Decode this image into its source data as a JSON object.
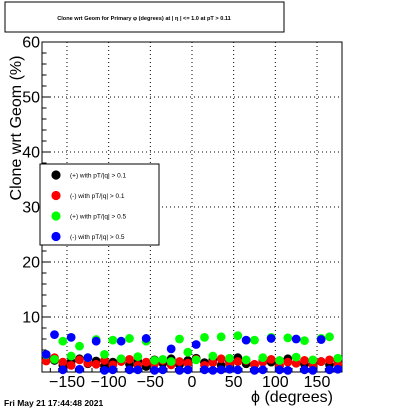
{
  "chart_data": {
    "type": "scatter",
    "title": "Clone wrt Geom for Primary φ (degrees) at | η | <= 1.0 at pT > 0.11",
    "xlabel": "ϕ (degrees)",
    "ylabel": "Clone wrt Geom (%)",
    "xlim": [
      -180,
      180
    ],
    "ylim": [
      0,
      60
    ],
    "x_ticks": [
      -150,
      -100,
      -50,
      0,
      50,
      100,
      150
    ],
    "x_tick_labels": [
      "−150",
      "−100",
      "−50",
      "0",
      "50",
      "100",
      "150"
    ],
    "y_ticks": [
      0,
      10,
      20,
      30,
      40,
      50,
      60
    ],
    "y_tick_labels": [
      "",
      "10",
      "20",
      "30",
      "40",
      "50",
      "60"
    ],
    "grid": true,
    "legend_position": "center-left",
    "series": [
      {
        "name": "(+) with pT/|q| > 0.1",
        "color": "#000000",
        "x": [
          -175,
          -165,
          -155,
          -145,
          -135,
          -125,
          -115,
          -105,
          -95,
          -85,
          -75,
          -65,
          -55,
          -45,
          -35,
          -25,
          -15,
          -5,
          5,
          15,
          25,
          35,
          45,
          55,
          65,
          75,
          85,
          95,
          105,
          115,
          125,
          135,
          145,
          155,
          165,
          175
        ],
        "y": [
          2.8,
          2.1,
          1.2,
          1.9,
          2.4,
          1.5,
          2.0,
          1.1,
          1.8,
          2.3,
          1.4,
          1.9,
          1.0,
          2.2,
          1.6,
          2.4,
          1.3,
          2.1,
          2.5,
          1.7,
          2.2,
          1.2,
          1.9,
          2.6,
          1.5,
          1.3,
          2.0,
          1.8,
          1.1,
          2.4,
          1.6,
          1.4,
          2.1,
          1.9,
          1.3,
          2.2
        ]
      },
      {
        "name": "(-) with pT/|q| > 0.1",
        "color": "#ff0000",
        "x": [
          -175,
          -165,
          -155,
          -145,
          -135,
          -125,
          -115,
          -105,
          -95,
          -85,
          -75,
          -65,
          -55,
          -45,
          -35,
          -25,
          -15,
          -5,
          5,
          15,
          25,
          35,
          45,
          55,
          65,
          75,
          85,
          95,
          105,
          115,
          125,
          135,
          145,
          155,
          165,
          175
        ],
        "y": [
          2.0,
          2.6,
          1.8,
          1.2,
          2.2,
          1.6,
          1.4,
          2.1,
          1.3,
          1.9,
          2.3,
          1.2,
          1.8,
          1.5,
          2.1,
          1.3,
          1.9,
          1.6,
          2.3,
          1.2,
          1.7,
          2.4,
          1.6,
          1.9,
          2.1,
          1.4,
          1.8,
          2.3,
          1.2,
          1.8,
          1.6,
          2.1,
          1.3,
          1.9,
          2.2,
          1.5
        ]
      },
      {
        "name": "(+) with pT/|q| > 0.5",
        "color": "#00ff00",
        "x": [
          -175,
          -165,
          -155,
          -145,
          -135,
          -125,
          -115,
          -105,
          -95,
          -85,
          -75,
          -65,
          -55,
          -45,
          -35,
          -25,
          -15,
          -5,
          5,
          15,
          25,
          35,
          45,
          55,
          65,
          75,
          85,
          95,
          105,
          115,
          125,
          135,
          145,
          155,
          165,
          175
        ],
        "y": [
          3.1,
          2.3,
          5.6,
          2.9,
          4.7,
          2.6,
          5.9,
          3.2,
          5.8,
          2.4,
          6.1,
          2.8,
          5.6,
          2.1,
          2.3,
          1.9,
          6.0,
          3.6,
          2.2,
          6.3,
          2.9,
          6.4,
          2.5,
          6.6,
          2.2,
          5.8,
          2.6,
          6.3,
          2.1,
          6.2,
          2.7,
          5.7,
          2.2,
          6.1,
          6.4,
          2.5
        ]
      },
      {
        "name": "(-) with pT/|q| > 0.5",
        "color": "#0000ff",
        "x": [
          -175,
          -165,
          -155,
          -145,
          -135,
          -125,
          -115,
          -105,
          -95,
          -85,
          -75,
          -65,
          -55,
          -45,
          -35,
          -25,
          -15,
          -5,
          5,
          15,
          25,
          35,
          45,
          55,
          65,
          75,
          85,
          95,
          105,
          115,
          125,
          135,
          145,
          155,
          165,
          175
        ],
        "y": [
          3.2,
          6.8,
          0.4,
          6.3,
          0.5,
          2.6,
          5.6,
          0.3,
          0.4,
          5.6,
          0.4,
          0.4,
          6.1,
          0.3,
          0.4,
          4.2,
          0.3,
          0.4,
          5.0,
          0.4,
          0.3,
          0.4,
          0.5,
          0.4,
          5.8,
          0.3,
          0.4,
          6.1,
          0.4,
          0.3,
          6.0,
          0.4,
          0.3,
          5.9,
          0.4,
          0.5
        ]
      }
    ]
  },
  "footer_timestamp": "Fri May 21 17:44:48 2021"
}
